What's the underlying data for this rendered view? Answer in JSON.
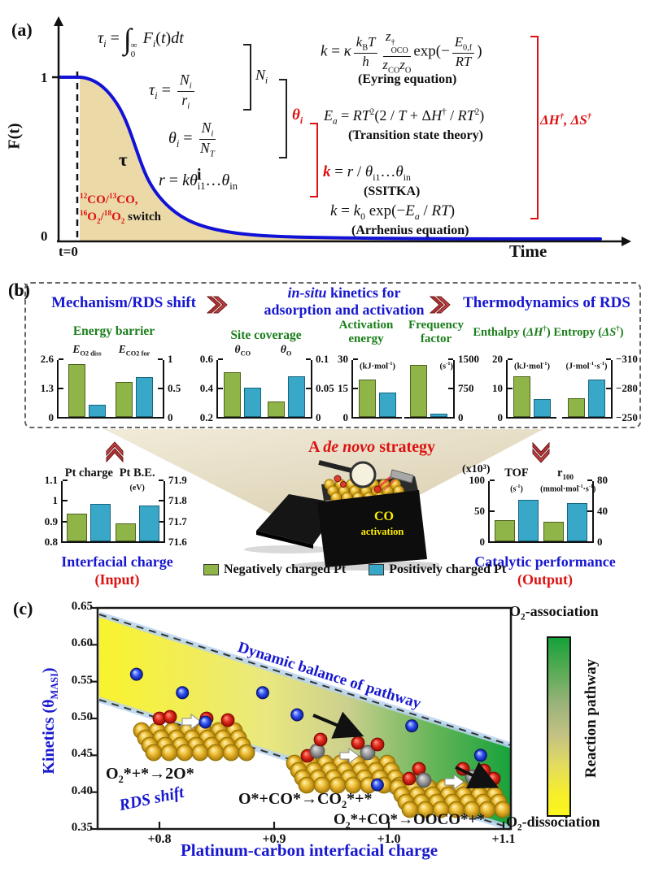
{
  "panels": {
    "a": "(a)",
    "b": "(b)",
    "c": "(c)"
  },
  "panel_a": {
    "y_axis_label": "F(t)",
    "y_top_tick": "1",
    "y_bottom_tick": "0",
    "x_zero_label": "t=0",
    "x_axis_label": "Time",
    "tau_symbol": "τ",
    "i_symbol": "i",
    "isotope_line1_html": "<sup>12</sup>CO/<sup>13</sup>CO,",
    "isotope_line2_html": "<sup>16</sup>O<sub>2</sub>/<sup>18</sup>O<sub>2</sub>",
    "switch_word": " switch",
    "equations": {
      "tau_integral_html": "<i>τ<sub>i</sub></i> = <span class='int'>∫</span><span class='ss lim'><span>∞</span><span>0</span></span> <i>F<sub>i</sub></i>(<i>t</i>)<i>dt</i>",
      "tau_frac_html": "<i>τ<sub>i</sub></i> = <span class='fr'><span class='nu'><i>N<sub>i</sub></i></span><span class='de'><i>r<sub>i</sub></i></span></span>",
      "theta_frac_html": "<i>θ<sub>i</sub></i> = <span class='fr'><span class='nu'><i>N<sub>i</sub></i></span><span class='de'><i>N<sub>T</sub></i></span></span>",
      "rate_html": "<i>r</i> = <i>kθ</i><sub>i1</sub>…<i>θ</i><sub>in</sub>",
      "brace1_label_html": "<i>N<sub>i</sub></i>",
      "brace2_label_html": "<i>θ<sub>i</sub></i>",
      "eyring_html": "<i>k</i> = <i>κ</i><span class='fr'><span class='nu'><i>k</i><sub>B</sub><i>T</i></span><span class='de'><i>h</i></span></span><span class='fr'><span class='nu'><i>z</i><span class='ss'><span>†</span><span>OCO</span></span></span><span class='de'><i>z</i><sub>CO</sub><i>z</i><sub>O</sub></span></span>exp(−<span class='fr'><span class='nu'><i>E</i><sub>0,f</sub></span><span class='de'><i>RT</i></span></span>)",
      "eyring_name": "(Eyring equation)",
      "tst_html": "<i>E<sub>a</sub></i> = <i>RT</i><sup>2</sup>(2 / <i>T</i> + Δ<i>H</i><sup>†</sup> / <i>RT</i><sup>2</sup>)",
      "tst_name": "(Transition state theory)",
      "ssitka_html": "<span class='redk'><i>k</i></span> = <i>r</i> / <i>θ</i><sub>i1</sub>…<i>θ</i><sub>in</sub>",
      "ssitka_name": "(SSITKA)",
      "arrhenius_html": "<i>k</i> = <i>k</i><sub>0</sub> exp(−<i>E<sub>a</sub></i> / <i>RT</i>)",
      "arrhenius_name": "(Arrhenius equation)",
      "thermo_label_html": "<b>ΔH</b><sup>†</sup><b>, ΔS</b><sup>†</sup>"
    }
  },
  "panel_b": {
    "flow_steps": {
      "step1": "Mechanism/RDS shift",
      "step2_html": "<i>in-situ</i> kinetics for<br>adsorption and activation",
      "step3": "Thermodynamics of RDS"
    },
    "chart_titles": {
      "energy_barrier": "Energy barrier",
      "site_coverage": "Site coverage",
      "activation_html": "Activation<br>energy",
      "frequency_html": "Frequency<br>factor",
      "thermo_html": "Enthalpy (<i>ΔH</i><sup>†</sup>) Entropy (<i>ΔS</i><sup>†</sup>)"
    },
    "strategy_html": "A <i>de novo</i> strategy",
    "box_text_line1": "CO",
    "box_text_line2": "activation",
    "legend": [
      {
        "label": "Negatively charged Pt",
        "color": "#8fb548"
      },
      {
        "label": "Positively charged Pt",
        "color": "#38a7c8"
      }
    ],
    "output_scale_note": "(x10³)",
    "input_caption": "Interfacial charge",
    "input_tag": "(Input)",
    "output_caption": "Catalytic performance",
    "output_tag": "(Output)"
  },
  "panel_c": {
    "ylabel_html": "Kinetics (θ<sub>MASI</sub>)",
    "xlabel": "Platinum-carbon interfacial charge",
    "band_label": "Dynamic balance of pathway",
    "rds_label": "RDS shift",
    "eq1_html": "O<sub>2</sub>*+*→2O*",
    "eq2_html": "O*+CO*→CO<sub>2</sub>*+*",
    "eq3_html": "O<sub>2</sub>*+CO*→OOCO*+*",
    "colorbar_top_html": "O<sub>2</sub>-association",
    "colorbar_bottom_html": "O<sub>2</sub>-dissociation",
    "colorbar_label": "Reaction pathway"
  },
  "chart_data": {
    "series_legend": [
      "Negatively charged Pt",
      "Positively charged Pt"
    ],
    "bar_charts": [
      {
        "id": "energy-barrier",
        "type": "bar",
        "title": "Energy barrier",
        "left_ticks": [
          "0",
          "1.3",
          "2.6"
        ],
        "right_ticks": [
          "0",
          "0.5",
          "1"
        ],
        "left_range": [
          0,
          2.6
        ],
        "right_range": [
          0,
          1
        ],
        "groups": [
          {
            "label_html": "<i>E</i><sub>O2 diss</sub>",
            "scale": "left",
            "values": [
              2.45,
              0.55
            ]
          },
          {
            "label_html": "<i>E</i><sub>CO2 for</sub>",
            "scale": "right",
            "values": [
              0.62,
              0.71
            ]
          }
        ]
      },
      {
        "id": "site-coverage",
        "type": "bar",
        "title": "Site coverage",
        "left_ticks": [
          "0.2",
          "0.4",
          "0.6"
        ],
        "right_ticks": [
          "0",
          "0.05",
          "0.1"
        ],
        "left_range": [
          0.2,
          0.6
        ],
        "right_range": [
          0,
          0.1
        ],
        "groups": [
          {
            "label_html": "<i>θ</i><sub>CO</sub>",
            "scale": "left",
            "values": [
              0.52,
              0.41
            ]
          },
          {
            "label_html": "<i>θ</i><sub>O</sub>",
            "scale": "right",
            "values": [
              0.028,
              0.072
            ]
          }
        ]
      },
      {
        "id": "activation",
        "type": "bar",
        "title": "Activation energy",
        "left_ticks": [
          "0",
          "15",
          "30"
        ],
        "left_range": [
          0,
          30
        ],
        "unit_html": "(kJ·mol<sup>-1</sup>)",
        "groups": [
          {
            "scale": "left",
            "values": [
              20,
              13
            ]
          }
        ]
      },
      {
        "id": "frequency",
        "type": "bar",
        "title": "Frequency factor",
        "right_ticks": [
          "0",
          "750",
          "1500"
        ],
        "right_range": [
          0,
          1500
        ],
        "unit_html": "(s<sup>-1</sup>)",
        "unit_pos": "right",
        "groups": [
          {
            "scale": "right",
            "values": [
              1400,
              90
            ]
          }
        ]
      },
      {
        "id": "enthalpy",
        "type": "bar",
        "title": "Enthalpy (ΔH†)",
        "left_ticks": [
          "0",
          "10",
          "20"
        ],
        "left_range": [
          0,
          20
        ],
        "unit_html": "(kJ·mol<sup>-1</sup>)",
        "groups": [
          {
            "scale": "left",
            "values": [
              14.5,
              6.3
            ]
          }
        ]
      },
      {
        "id": "entropy",
        "type": "bar",
        "title": "Entropy (ΔS†)",
        "right_ticks": [
          "−250",
          "−280",
          "−310"
        ],
        "right_range": [
          -250,
          -310
        ],
        "unit_html": "(J·mol<sup>-1</sup>·s<sup>-1</sup>)",
        "groups": [
          {
            "scale": "right",
            "values": [
              -270,
              -290
            ]
          }
        ]
      },
      {
        "id": "input",
        "type": "bar",
        "title": "Interfacial charge (Input)",
        "left_ticks": [
          "0.8",
          "0.9",
          "1",
          "1.1"
        ],
        "right_ticks": [
          "71.6",
          "71.7",
          "71.8",
          "71.9"
        ],
        "left_range": [
          0.8,
          1.1
        ],
        "right_range": [
          71.6,
          71.9
        ],
        "groups": [
          {
            "label_html": "Pt charge",
            "scale": "left",
            "values": [
              0.94,
              0.99
            ]
          },
          {
            "label_html": "Pt B.E.",
            "unit_html": "(eV)",
            "scale": "right",
            "values": [
              71.69,
              71.78
            ]
          }
        ]
      },
      {
        "id": "output",
        "type": "bar",
        "title": "Catalytic performance (Output)",
        "left_ticks": [
          "0",
          "50",
          "100"
        ],
        "right_ticks": [
          "0",
          "40",
          "80"
        ],
        "left_range": [
          0,
          100
        ],
        "right_range": [
          0,
          80
        ],
        "groups": [
          {
            "label_html": "TOF",
            "unit_html": "(s<sup>-1</sup>)",
            "scale": "left",
            "values": [
              35,
              70
            ]
          },
          {
            "label_html": "r<sub>100</sub>",
            "unit_html": "(mmol·mol<sup>-1</sup>·s<sup>-1</sup>)",
            "scale": "right",
            "values": [
              26,
              52
            ]
          }
        ]
      }
    ],
    "scatter": {
      "type": "scatter",
      "xlabel": "Platinum-carbon interfacial charge",
      "ylabel": "Kinetics (θMASI)",
      "xticks": [
        "+0.8",
        "+0.9",
        "+1.0",
        "+1.1"
      ],
      "yticks": [
        "0.35",
        "0.40",
        "0.45",
        "0.50",
        "0.55",
        "0.60",
        "0.65"
      ],
      "xlim": [
        0.746,
        1.106
      ],
      "ylim": [
        0.35,
        0.65
      ],
      "points": [
        [
          0.78,
          0.56
        ],
        [
          0.82,
          0.535
        ],
        [
          0.84,
          0.495
        ],
        [
          0.89,
          0.535
        ],
        [
          0.92,
          0.505
        ],
        [
          1.02,
          0.49
        ],
        [
          0.99,
          0.41
        ],
        [
          1.08,
          0.45
        ]
      ]
    }
  },
  "colors": {
    "accent_blue": "#1717cf",
    "accent_green": "#1a7e1a",
    "accent_red": "#dd1111",
    "bar_green": "#8fb548",
    "bar_blue": "#38a7c8",
    "curve_blue": "#1212d6",
    "band_yellow": "#f7ef2e",
    "band_green": "#1ea23f",
    "gold": "#e7b92a"
  }
}
